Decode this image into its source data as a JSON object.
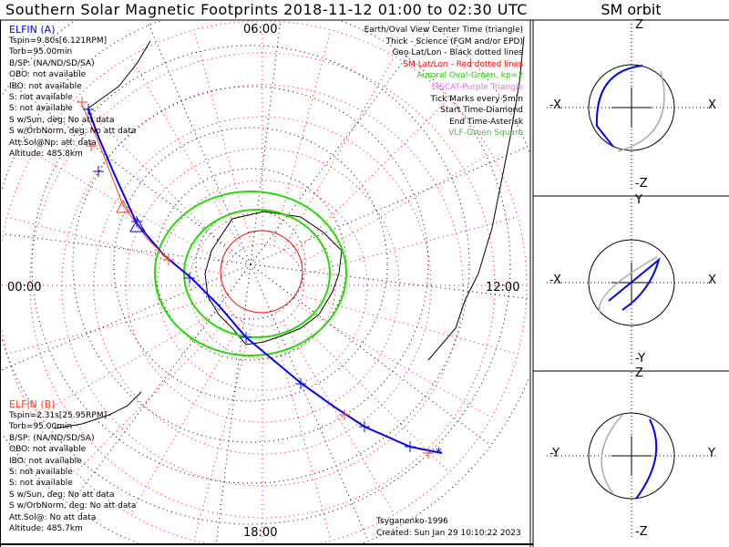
{
  "title": "Southern Solar Magnetic Footprints 2018-11-12 01:00 to 02:30 UTC",
  "orbit_title": "SM orbit",
  "hour_labels": {
    "top": "06:00",
    "bottom": "18:00",
    "left": "00:00",
    "right": "12:00"
  },
  "elfin_a": {
    "name": "ELFIN (A)",
    "color": "#0000ff",
    "lines": [
      "Tspin=9.80s[6.121RPM]",
      "Torb=95.00min",
      "B/SP: (NA/ND/SD/SA)",
      "OBO: not available",
      "IBO: not available",
      "S: not available",
      "S: not available",
      "S w/Sun, deg: No att data",
      "S w/OrbNorm, deg: No att data",
      "Att.Sol@Np: att: data",
      "Altitude: 485.8km"
    ]
  },
  "elfin_b": {
    "name": "ELFIN (B)",
    "color": "#ff4020",
    "lines": [
      "Tspin=2.31s[25.95RPM]",
      "Torb=95.00min",
      "B/SP: (NA/ND/SD/SA)",
      "OBO: not available",
      "IBO: not available",
      "S: not available",
      "S: not available",
      "S w/Sun, deg: No att data",
      "S w/OrbNorm, deg: No att data",
      "Att.Sol@: No att data",
      "Altitude: 485.7km"
    ]
  },
  "legend": [
    {
      "text": "Earth/Oval View Center Time (triangle)",
      "color": "#000000"
    },
    {
      "text": "Thick - Science (FGM and/or EPD)",
      "color": "#000000"
    },
    {
      "text": "Geo Lat/Lon - Black dotted lines",
      "color": "#000000"
    },
    {
      "text": "SM Lat/Lon - Red dotted lines",
      "color": "#ff0000"
    },
    {
      "text": "Auroral Oval-Green, kp=2",
      "color": "#22cc00"
    },
    {
      "text": "EISCAT-Purple Triangle",
      "color": "#ee66ee"
    },
    {
      "text": "Tick Marks every 5min",
      "color": "#000000"
    },
    {
      "text": "Start Time-Diamond",
      "color": "#000000"
    },
    {
      "text": "End Time-Asterisk",
      "color": "#000000"
    },
    {
      "text": "VLF-Green Square",
      "color": "#44bb44"
    }
  ],
  "model": "Tsyganenko-1996",
  "created": "Created: Sun Jan 29 10:10:22 2023",
  "orbit_panels": [
    {
      "left": "-X",
      "right": "X",
      "top": "Z",
      "bottom": "-Z"
    },
    {
      "left": "-X",
      "right": "X",
      "top": "Y",
      "bottom": "-Y"
    },
    {
      "left": "-Y",
      "right": "Y",
      "top": "Z",
      "bottom": "-Z"
    }
  ]
}
